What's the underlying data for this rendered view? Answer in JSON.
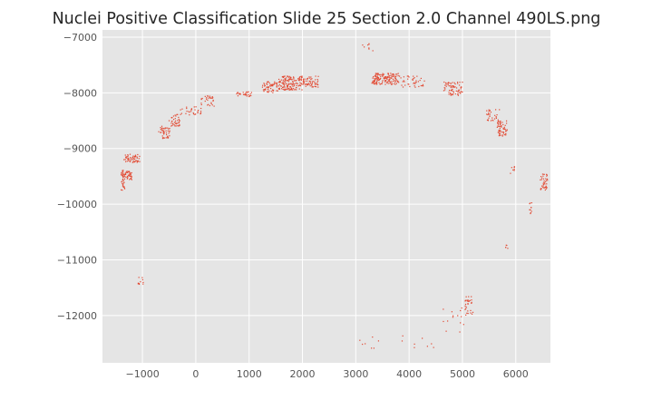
{
  "chart_data": {
    "type": "scatter",
    "title": "Nuclei Positive Classification Slide  25 Section 2.0 Channel 490LS.png",
    "xlabel": "",
    "ylabel": "",
    "xlim": [
      -1750,
      6650
    ],
    "ylim": [
      -12850,
      -6870
    ],
    "x_ticks": [
      -1000,
      0,
      1000,
      2000,
      3000,
      4000,
      5000,
      6000
    ],
    "y_ticks": [
      -7000,
      -8000,
      -9000,
      -10000,
      -11000,
      -12000
    ],
    "x_tick_labels": [
      "−1000",
      "0",
      "1000",
      "2000",
      "3000",
      "4000",
      "5000",
      "6000"
    ],
    "y_tick_labels": [
      "−7000",
      "−8000",
      "−9000",
      "−10000",
      "−11000",
      "−12000"
    ],
    "grid": true,
    "legend": "none",
    "colors": {
      "points": "#e24a33",
      "panel": "#e5e5e5",
      "grid": "#ffffff"
    },
    "clusters": [
      {
        "x": [
          -1400,
          -1330
        ],
        "y": [
          -9750,
          -9380
        ],
        "n": 40
      },
      {
        "x": [
          -1330,
          -1200
        ],
        "y": [
          -9560,
          -9400
        ],
        "n": 35
      },
      {
        "x": [
          -1350,
          -1050
        ],
        "y": [
          -9250,
          -9100
        ],
        "n": 55
      },
      {
        "x": [
          -1100,
          -980
        ],
        "y": [
          -11450,
          -11300
        ],
        "n": 10
      },
      {
        "x": [
          -700,
          -480
        ],
        "y": [
          -8820,
          -8600
        ],
        "n": 45
      },
      {
        "x": [
          -500,
          -300
        ],
        "y": [
          -8600,
          -8380
        ],
        "n": 40
      },
      {
        "x": [
          -300,
          100
        ],
        "y": [
          -8400,
          -8250
        ],
        "n": 30
      },
      {
        "x": [
          100,
          350
        ],
        "y": [
          -8250,
          -8050
        ],
        "n": 30
      },
      {
        "x": [
          750,
          1050
        ],
        "y": [
          -8070,
          -7980
        ],
        "n": 30
      },
      {
        "x": [
          1250,
          1550
        ],
        "y": [
          -8000,
          -7800
        ],
        "n": 60
      },
      {
        "x": [
          1550,
          2000
        ],
        "y": [
          -7950,
          -7700
        ],
        "n": 150
      },
      {
        "x": [
          2000,
          2300
        ],
        "y": [
          -7900,
          -7700
        ],
        "n": 60
      },
      {
        "x": [
          2950,
          3350
        ],
        "y": [
          -7250,
          -7100
        ],
        "n": 8
      },
      {
        "x": [
          3300,
          3800
        ],
        "y": [
          -7850,
          -7650
        ],
        "n": 150
      },
      {
        "x": [
          3800,
          4300
        ],
        "y": [
          -7900,
          -7700
        ],
        "n": 40
      },
      {
        "x": [
          4650,
          5000
        ],
        "y": [
          -8050,
          -7800
        ],
        "n": 75
      },
      {
        "x": [
          5450,
          5700
        ],
        "y": [
          -8500,
          -8300
        ],
        "n": 30
      },
      {
        "x": [
          5650,
          5850
        ],
        "y": [
          -8800,
          -8500
        ],
        "n": 60
      },
      {
        "x": [
          5900,
          5980
        ],
        "y": [
          -9500,
          -9300
        ],
        "n": 8
      },
      {
        "x": [
          6450,
          6600
        ],
        "y": [
          -9750,
          -9450
        ],
        "n": 40
      },
      {
        "x": [
          6250,
          6300
        ],
        "y": [
          -10200,
          -9950
        ],
        "n": 10
      },
      {
        "x": [
          5780,
          5850
        ],
        "y": [
          -10800,
          -10720
        ],
        "n": 5
      },
      {
        "x": [
          5050,
          5200
        ],
        "y": [
          -12000,
          -11650
        ],
        "n": 30
      },
      {
        "x": [
          4600,
          5100
        ],
        "y": [
          -12300,
          -11800
        ],
        "n": 15
      },
      {
        "x": [
          3000,
          4500
        ],
        "y": [
          -12600,
          -12350
        ],
        "n": 15
      }
    ]
  }
}
